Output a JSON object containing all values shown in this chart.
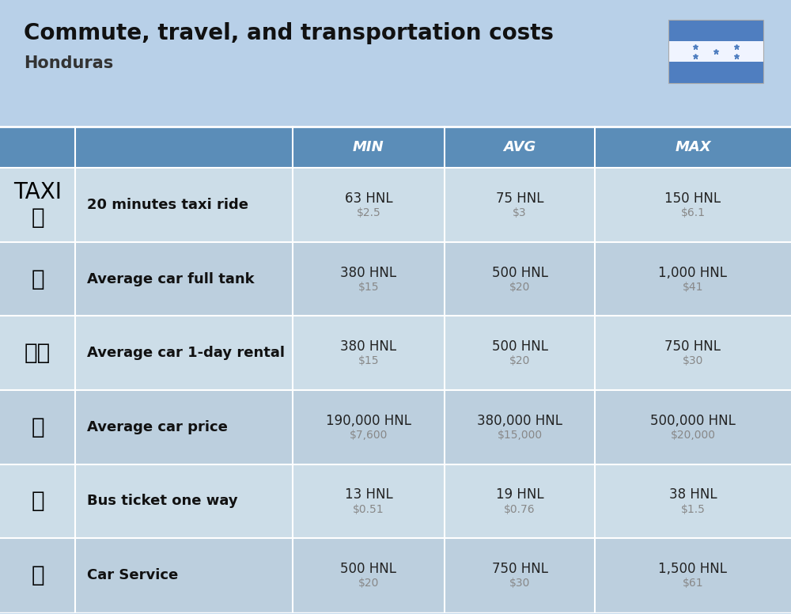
{
  "title": "Commute, travel, and transportation costs",
  "subtitle": "Honduras",
  "background_color": "#b8d0e8",
  "header_bg_color": "#5b8db8",
  "header_text_color": "#ffffff",
  "row_colors": [
    "#ccdde8",
    "#bccfde"
  ],
  "col_headers": [
    "MIN",
    "AVG",
    "MAX"
  ],
  "rows": [
    {
      "label": "20 minutes taxi ride",
      "min_hnl": "63 HNL",
      "min_usd": "$2.5",
      "avg_hnl": "75 HNL",
      "avg_usd": "$3",
      "max_hnl": "150 HNL",
      "max_usd": "$6.1"
    },
    {
      "label": "Average car full tank",
      "min_hnl": "380 HNL",
      "min_usd": "$15",
      "avg_hnl": "500 HNL",
      "avg_usd": "$20",
      "max_hnl": "1,000 HNL",
      "max_usd": "$41"
    },
    {
      "label": "Average car 1-day rental",
      "min_hnl": "380 HNL",
      "min_usd": "$15",
      "avg_hnl": "500 HNL",
      "avg_usd": "$20",
      "max_hnl": "750 HNL",
      "max_usd": "$30"
    },
    {
      "label": "Average car price",
      "min_hnl": "190,000 HNL",
      "min_usd": "$7,600",
      "avg_hnl": "380,000 HNL",
      "avg_usd": "$15,000",
      "max_hnl": "500,000 HNL",
      "max_usd": "$20,000"
    },
    {
      "label": "Bus ticket one way",
      "min_hnl": "13 HNL",
      "min_usd": "$0.51",
      "avg_hnl": "19 HNL",
      "avg_usd": "$0.76",
      "max_hnl": "38 HNL",
      "max_usd": "$1.5"
    },
    {
      "label": "Car Service",
      "min_hnl": "500 HNL",
      "min_usd": "$20",
      "avg_hnl": "750 HNL",
      "avg_usd": "$30",
      "max_hnl": "1,500 HNL",
      "max_usd": "$61"
    }
  ],
  "title_fontsize": 20,
  "subtitle_fontsize": 15,
  "header_fontsize": 13,
  "label_fontsize": 13,
  "value_fontsize": 12,
  "usd_fontsize": 10,
  "flag_color_blue": "#4f7ec0",
  "flag_color_white": "#f0f4ff",
  "flag_star_color": "#4f7ec0"
}
